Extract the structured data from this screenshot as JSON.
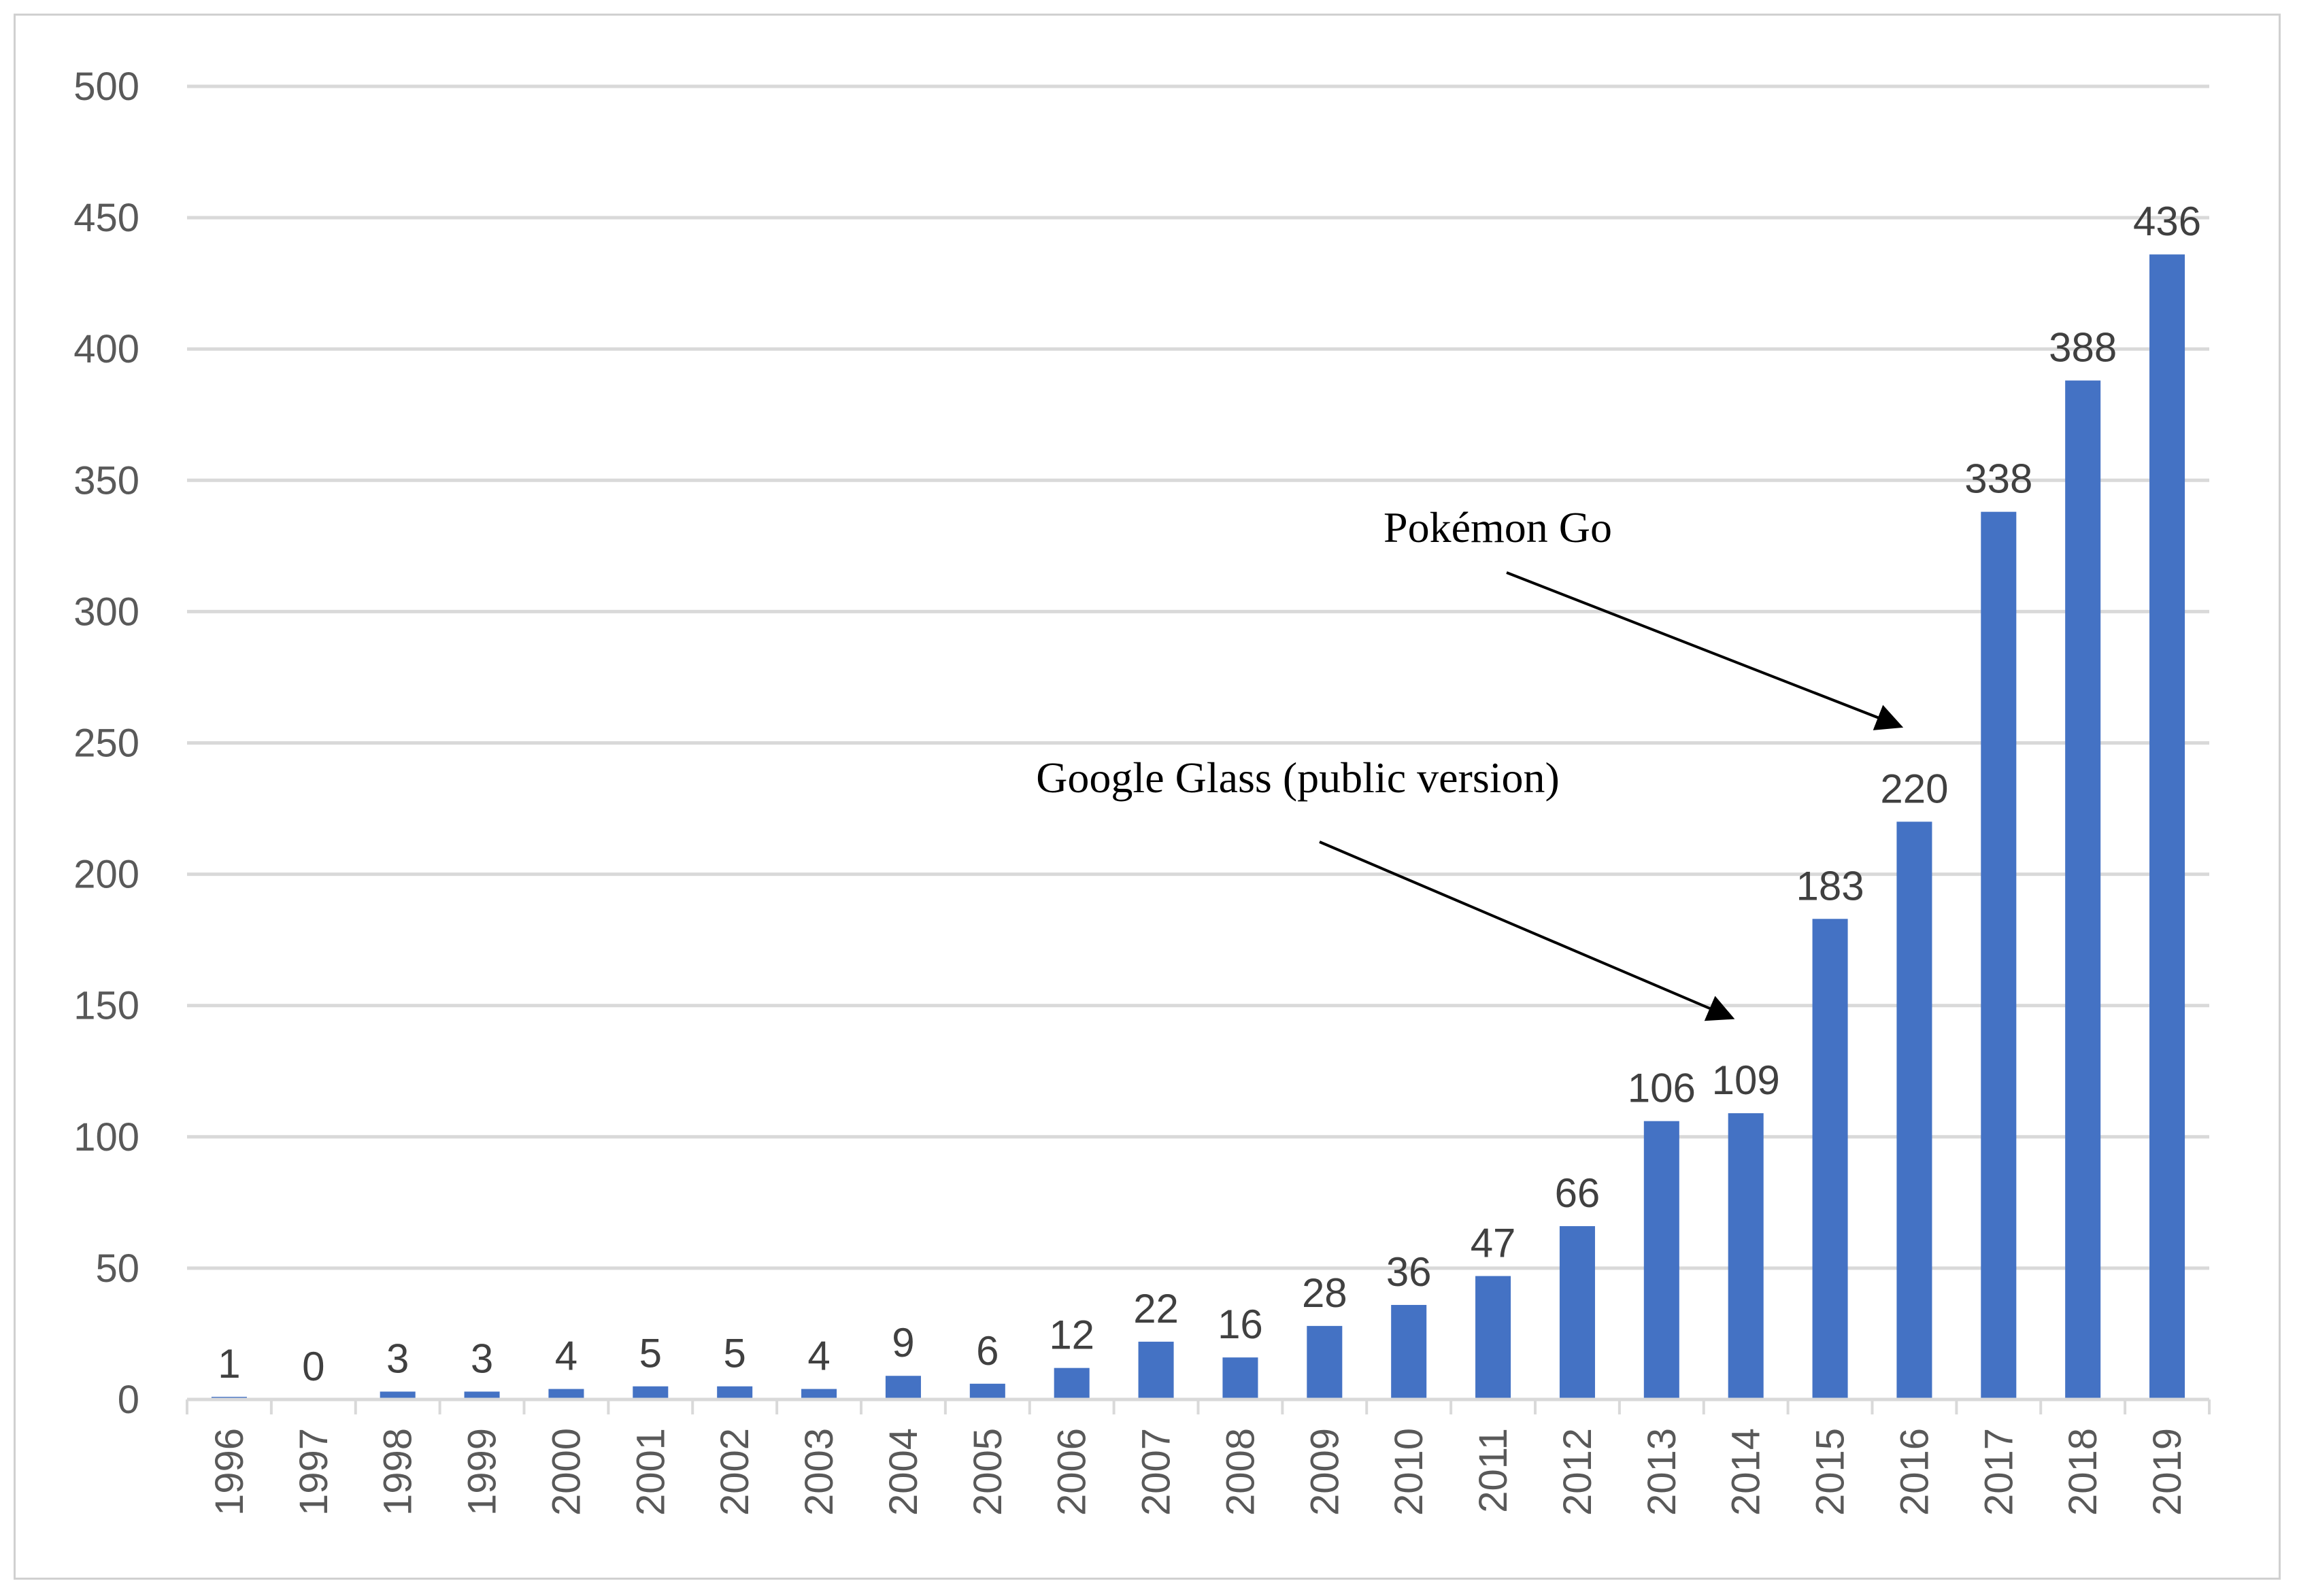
{
  "chart_data": {
    "type": "bar",
    "title": "",
    "xlabel": "",
    "ylabel": "",
    "ylim": [
      0,
      500
    ],
    "yticks": [
      0,
      50,
      100,
      150,
      200,
      250,
      300,
      350,
      400,
      450,
      500
    ],
    "grid": true,
    "bar_color": "#4472C4",
    "categories": [
      "1996",
      "1997",
      "1998",
      "1999",
      "2000",
      "2001",
      "2002",
      "2003",
      "2004",
      "2005",
      "2006",
      "2007",
      "2008",
      "2009",
      "2010",
      "2011",
      "2012",
      "2013",
      "2014",
      "2015",
      "2016",
      "2017",
      "2018",
      "2019"
    ],
    "values": [
      1,
      0,
      3,
      3,
      4,
      5,
      5,
      4,
      9,
      6,
      12,
      22,
      16,
      28,
      36,
      47,
      66,
      106,
      109,
      183,
      220,
      338,
      388,
      436
    ],
    "annotations": [
      {
        "text": "Google Glass (public version)",
        "target_category": "2014"
      },
      {
        "text": "Pokémon Go",
        "target_category": "2016"
      }
    ]
  }
}
